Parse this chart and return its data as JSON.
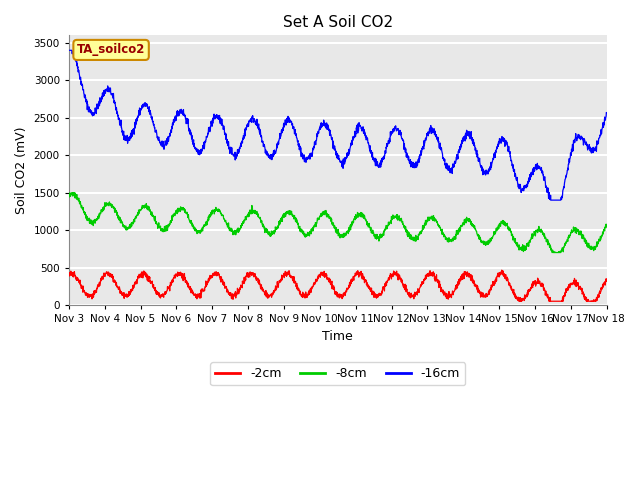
{
  "title": "Set A Soil CO2",
  "ylabel": "Soil CO2 (mV)",
  "xlabel": "Time",
  "sensor_label": "TA_soilco2",
  "ylim": [
    0,
    3600
  ],
  "yticks": [
    0,
    500,
    1000,
    1500,
    2000,
    2500,
    3000,
    3500
  ],
  "x_tick_labels": [
    "Nov 3",
    "Nov 4",
    "Nov 5",
    "Nov 6",
    "Nov 7",
    "Nov 8",
    "Nov 9",
    "Nov 10",
    "Nov 11",
    "Nov 12",
    "Nov 13",
    "Nov 14",
    "Nov 15",
    "Nov 16",
    "Nov 17",
    "Nov 18"
  ],
  "line_colors": {
    "2cm": "#ff0000",
    "8cm": "#00cc00",
    "16cm": "#0000ff"
  },
  "legend_labels": [
    "-2cm",
    "-8cm",
    "-16cm"
  ],
  "fig_bg_color": "#ffffff",
  "plot_bg_color": "#e8e8e8",
  "grid_color": "#ffffff",
  "sensor_box_color": "#ffff99",
  "sensor_box_edge": "#cc8800"
}
